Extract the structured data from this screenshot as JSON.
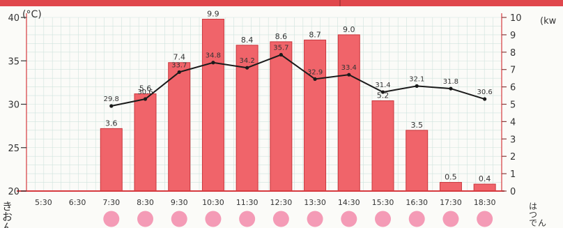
{
  "chart_data": {
    "type": "bar+line",
    "categories": [
      "5:30",
      "6:30",
      "7:30",
      "8:30",
      "9:30",
      "10:30",
      "11:30",
      "12:30",
      "13:30",
      "14:30",
      "15:30",
      "16:30",
      "17:30",
      "18:30"
    ],
    "bar_series": {
      "name": "",
      "values": [
        null,
        null,
        3.6,
        5.6,
        7.4,
        9.9,
        8.4,
        8.6,
        8.7,
        9.0,
        5.2,
        3.5,
        0.5,
        0.4
      ],
      "labels": [
        "",
        "",
        "3.6",
        "5.6",
        "7.4",
        "9.9",
        "8.4",
        "8.6",
        "8.7",
        "9.0",
        "5.2",
        "3.5",
        "0.5",
        "0.4"
      ],
      "color": "#f0646a"
    },
    "line_series": {
      "name": "",
      "values": [
        null,
        null,
        29.8,
        30.6,
        33.7,
        34.8,
        34.2,
        35.7,
        32.9,
        33.4,
        31.4,
        32.1,
        31.8,
        30.6
      ],
      "labels": [
        "",
        "",
        "29.8",
        "30.6",
        "33.7",
        "34.8",
        "34.2",
        "35.7",
        "32.9",
        "33.4",
        "31.4",
        "32.1",
        "31.8",
        "30.6"
      ],
      "color": "#1a1a1a"
    },
    "y_left": {
      "label": "(°C)",
      "range": [
        20,
        40
      ],
      "ticks": [
        "20",
        "25",
        "30",
        "35",
        "40"
      ]
    },
    "y_right": {
      "label": "(kw",
      "range": [
        0,
        10
      ],
      "ticks": [
        "0",
        "1",
        "2",
        "3",
        "4",
        "5",
        "6",
        "7",
        "8",
        "9",
        "10"
      ]
    },
    "left_axis_caption": "きおん",
    "right_axis_caption": "はつでん",
    "markers": [
      false,
      false,
      true,
      true,
      true,
      true,
      true,
      true,
      true,
      true,
      true,
      true,
      true,
      true
    ],
    "marker_color": "#f49bb6",
    "grid": true,
    "accent_line_color": "#d63a3f",
    "grid_color": "#cfe3dd"
  }
}
